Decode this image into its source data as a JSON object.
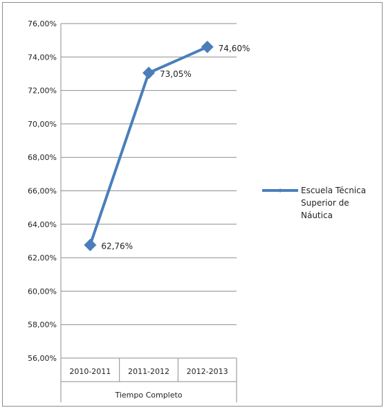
{
  "chart_data": {
    "type": "line",
    "categories": [
      "2010-2011",
      "2011-2012",
      "2012-2013"
    ],
    "group_label": "Tiempo Completo",
    "ylim": [
      56,
      76
    ],
    "ystep": 2,
    "ytick_labels": [
      "56,00%",
      "58,00%",
      "60,00%",
      "62,00%",
      "64,00%",
      "66,00%",
      "68,00%",
      "70,00%",
      "72,00%",
      "74,00%",
      "76,00%"
    ],
    "grid": true,
    "legend_position": "right",
    "series": [
      {
        "name_lines": [
          "Escuela Técnica",
          "Superior de",
          "Náutica"
        ],
        "values": [
          62.76,
          73.05,
          74.6
        ],
        "data_labels": [
          "62,76%",
          "73,05%",
          "74,60%"
        ],
        "color": "#4a7ebb",
        "marker": "diamond"
      }
    ]
  }
}
